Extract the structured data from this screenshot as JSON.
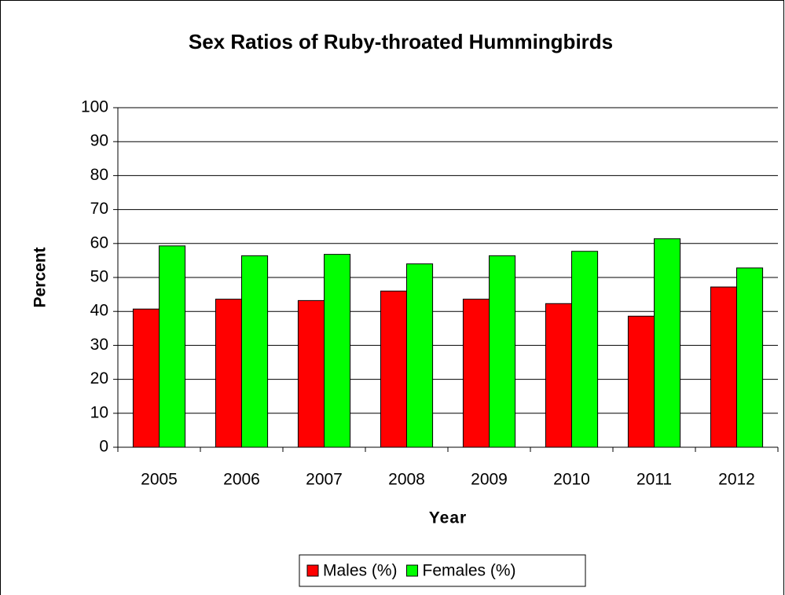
{
  "chart_data": {
    "type": "bar",
    "title": "Sex Ratios of Ruby-throated Hummingbirds",
    "x_label": "Year",
    "y_label": "Percent",
    "categories": [
      "2005",
      "2006",
      "2007",
      "2008",
      "2009",
      "2010",
      "2011",
      "2012"
    ],
    "series": [
      {
        "name": "Males (%)",
        "color": "#ff0000",
        "values": [
          40.7,
          43.6,
          43.2,
          46,
          43.6,
          42.3,
          38.6,
          47.2
        ]
      },
      {
        "name": "Females (%)",
        "color": "#00ff00",
        "values": [
          59.3,
          56.4,
          56.8,
          54,
          56.4,
          57.7,
          61.4,
          52.8
        ]
      }
    ],
    "ylim": [
      0,
      100
    ],
    "yticks": [
      0,
      10,
      20,
      30,
      40,
      50,
      60,
      70,
      80,
      90,
      100
    ],
    "grid": true,
    "legend": "bottom"
  }
}
